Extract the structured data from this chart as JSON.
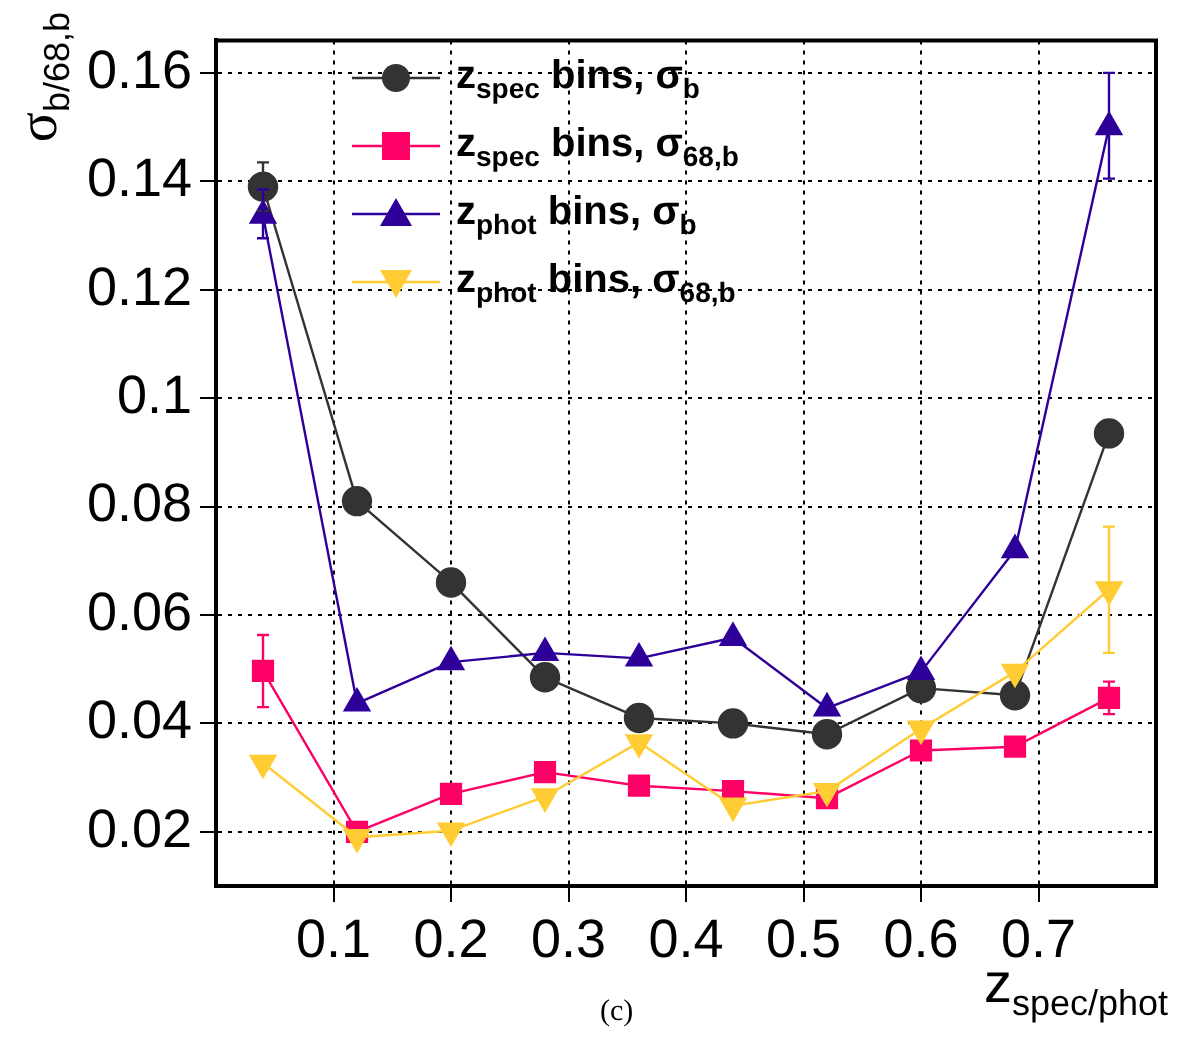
{
  "chart_data": {
    "type": "line",
    "xlabel": "z$_{spec/phot}$",
    "ylabel": "σ$_{b/68,b}$",
    "x": [
      0.04,
      0.12,
      0.2,
      0.28,
      0.36,
      0.44,
      0.52,
      0.6,
      0.68,
      0.76
    ],
    "xlim": [
      0,
      0.8
    ],
    "xticks": [
      0.1,
      0.2,
      0.3,
      0.4,
      0.5,
      0.6,
      0.7
    ],
    "ylim": [
      0.01,
      0.166
    ],
    "yticks": [
      0.02,
      0.04,
      0.06,
      0.08,
      0.1,
      0.12,
      0.14,
      0.16
    ],
    "grid": true,
    "legend": "top left",
    "annotations": [
      "(c)"
    ],
    "series": [
      {
        "name": "z$_{spec}$ bins, σ$_{b}$",
        "color": "#333333",
        "marker": "circle",
        "values": [
          0.139,
          0.081,
          0.066,
          0.0485,
          0.041,
          0.04,
          0.038,
          0.0465,
          0.0452,
          0.0935
        ],
        "errors": [
          [
            0.1345,
            0.1435
          ],
          null,
          null,
          null,
          null,
          null,
          null,
          null,
          null,
          [
            0.0915,
            0.0955
          ]
        ]
      },
      {
        "name": "z$_{spec}$ bins, σ$_{68,b}$",
        "color": "#ff0066",
        "marker": "square",
        "values": [
          0.0497,
          0.02,
          0.027,
          0.031,
          0.0285,
          0.0275,
          0.0262,
          0.035,
          0.0357,
          0.0447
        ],
        "errors": [
          [
            0.043,
            0.0563
          ],
          null,
          null,
          null,
          null,
          null,
          null,
          null,
          null,
          [
            0.0417,
            0.0477
          ]
        ]
      },
      {
        "name": "z$_{phot}$ bins, σ$_{b}$",
        "color": "#2e0099",
        "marker": "triangle",
        "values": [
          0.1337,
          0.0437,
          0.0513,
          0.053,
          0.052,
          0.0558,
          0.0428,
          0.0495,
          0.072,
          0.15
        ],
        "errors": [
          [
            0.1295,
            0.1385
          ],
          null,
          null,
          null,
          null,
          null,
          null,
          null,
          null,
          [
            0.1405,
            0.16
          ]
        ]
      },
      {
        "name": "z$_{phot}$ bins, σ$_{68,b}$",
        "color": "#ffcc33",
        "marker": "triangle-down",
        "values": [
          0.0327,
          0.019,
          0.0202,
          0.0265,
          0.0365,
          0.0248,
          0.0275,
          0.039,
          0.0495,
          0.0647
        ],
        "errors": [
          null,
          null,
          null,
          null,
          null,
          null,
          null,
          null,
          null,
          [
            0.053,
            0.0763
          ]
        ]
      }
    ]
  }
}
